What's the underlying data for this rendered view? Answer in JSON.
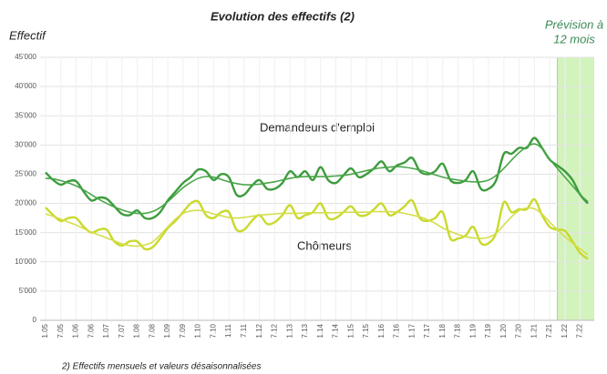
{
  "chart_data": {
    "type": "line",
    "title": "Evolution des effectifs (2)",
    "y_label": "Effectif",
    "forecast_label": [
      "Prévision à",
      "12 mois"
    ],
    "footnote": "2) Effectifs mensuels et valeurs désaisonnalisées",
    "annotations": [
      "Demandeurs d'emploi",
      "Chômeurs"
    ],
    "categories": [
      "1.05",
      null,
      "7.05",
      null,
      "1.06",
      null,
      "7.06",
      null,
      "1.07",
      null,
      "7.07",
      null,
      "1.08",
      null,
      "7.08",
      null,
      "1.09",
      null,
      "7.09",
      null,
      "1.10",
      null,
      "7.10",
      null,
      "1.11",
      null,
      "7.11",
      null,
      "1.12",
      null,
      "7.12",
      null,
      "1.13",
      null,
      "7.13",
      null,
      "1.14",
      null,
      "7.14",
      null,
      "1.15",
      null,
      "7.15",
      null,
      "1.16",
      null,
      "7.16",
      null,
      "1.17",
      null,
      "7.17",
      null,
      "1.18",
      null,
      "7.18",
      null,
      "1.19",
      null,
      "7.19",
      null,
      "1.20",
      null,
      "7.20",
      null,
      "1.21",
      null,
      "7.21",
      null,
      "1.22",
      null,
      "7.22",
      null
    ],
    "series": [
      {
        "color": "#3d9c3d",
        "values": [
          25300,
          24000,
          23200,
          23800,
          23800,
          22000,
          20500,
          21000,
          20800,
          19500,
          18200,
          18000,
          18800,
          17500,
          17500,
          18500,
          20500,
          22000,
          23500,
          24500,
          25800,
          25500,
          24000,
          25000,
          24500,
          21500,
          21500,
          23000,
          24000,
          22500,
          22500,
          23500,
          25500,
          24500,
          25500,
          24000,
          26200,
          24000,
          23500,
          24800,
          26000,
          24500,
          25000,
          26000,
          27200,
          25500,
          26500,
          27000,
          27800,
          25500,
          25000,
          25500,
          26800,
          24000,
          23500,
          24000,
          25500,
          22500,
          22500,
          24000,
          28500,
          28500,
          29500,
          29500,
          31200,
          29500,
          27500,
          26500,
          25500,
          24000,
          21500,
          20000
        ]
      },
      {
        "color": "#4aa64a",
        "values": [
          24300,
          24200,
          23900,
          23500,
          23000,
          22300,
          21500,
          20700,
          20000,
          19400,
          18900,
          18500,
          18300,
          18300,
          18600,
          19300,
          20300,
          21500,
          22700,
          23600,
          24300,
          24600,
          24500,
          24100,
          23700,
          23400,
          23200,
          23200,
          23300,
          23500,
          23700,
          24000,
          24300,
          24500,
          24600,
          24600,
          24600,
          24600,
          24700,
          24800,
          25000,
          25300,
          25600,
          25900,
          26100,
          26200,
          26300,
          26200,
          26000,
          25700,
          25300,
          24900,
          24500,
          24200,
          24000,
          23800,
          23700,
          23700,
          24000,
          24800,
          26000,
          27400,
          28700,
          29700,
          30200,
          29400,
          27600,
          26000,
          24500,
          23000,
          21500,
          20300
        ]
      },
      {
        "color": "#c9d92b",
        "values": [
          19300,
          18000,
          17000,
          17500,
          17500,
          16000,
          15000,
          15500,
          15500,
          13500,
          12800,
          13500,
          13500,
          12200,
          12500,
          14000,
          15800,
          17000,
          18500,
          20000,
          20300,
          18000,
          17500,
          18500,
          18500,
          15500,
          15500,
          17000,
          18000,
          16500,
          16800,
          18000,
          19700,
          17500,
          18000,
          18500,
          20000,
          17500,
          17500,
          18500,
          19500,
          18000,
          18000,
          19000,
          20000,
          18000,
          18500,
          19500,
          20500,
          17500,
          17000,
          17500,
          18500,
          14000,
          14000,
          14500,
          16000,
          13200,
          13200,
          15000,
          20200,
          18500,
          19000,
          19000,
          20700,
          18000,
          16000,
          15500,
          15300,
          13500,
          11500,
          10500
        ]
      },
      {
        "color": "#d4de4a",
        "values": [
          18200,
          17800,
          17300,
          16800,
          16300,
          15700,
          15100,
          14600,
          14100,
          13600,
          13100,
          12800,
          12700,
          12900,
          13400,
          14600,
          16000,
          17300,
          18300,
          18700,
          18800,
          18600,
          18200,
          17900,
          17600,
          17500,
          17600,
          17800,
          18000,
          18100,
          18200,
          18300,
          18300,
          18300,
          18400,
          18400,
          18400,
          18400,
          18400,
          18500,
          18500,
          18500,
          18500,
          18600,
          18600,
          18600,
          18500,
          18300,
          18000,
          17700,
          17200,
          16600,
          15800,
          15200,
          14700,
          14300,
          14100,
          14000,
          14200,
          14900,
          16300,
          17700,
          18800,
          19200,
          19100,
          18200,
          16800,
          15500,
          14300,
          13200,
          12200,
          11200
        ]
      }
    ],
    "ylim": [
      0,
      45000
    ],
    "yticks": [
      0,
      {
        "value": 5000,
        "label": "5'000"
      },
      {
        "value": 10000,
        "label": "10'000"
      },
      {
        "value": 15000,
        "label": "15'000"
      },
      {
        "value": 20000,
        "label": "20'000"
      },
      {
        "value": 25000,
        "label": "25'000"
      },
      {
        "value": 30000,
        "label": "30'000"
      },
      {
        "value": 35000,
        "label": "35'000"
      },
      {
        "value": 40000,
        "label": "40'000"
      },
      {
        "value": 45000,
        "label": "45'000"
      }
    ],
    "grid": true
  }
}
